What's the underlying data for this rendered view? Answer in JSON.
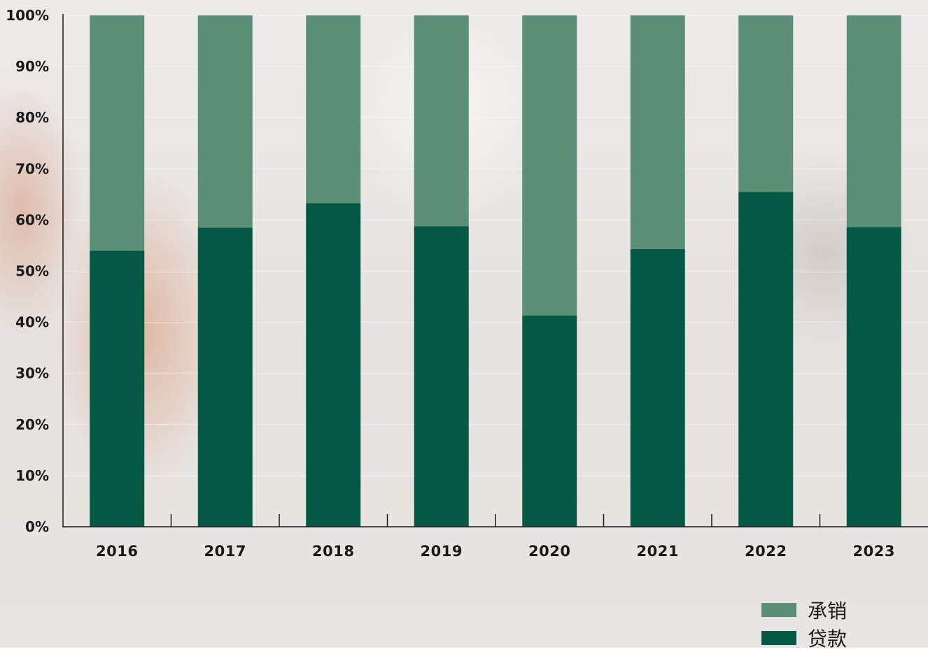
{
  "chart_data": {
    "type": "bar",
    "stacked": true,
    "categories": [
      "2016",
      "2017",
      "2018",
      "2019",
      "2020",
      "2021",
      "2022",
      "2023"
    ],
    "series": [
      {
        "name": "贷款",
        "color": "#045945",
        "values": [
          54,
          58.5,
          63.3,
          58.8,
          41.3,
          54.3,
          65.5,
          58.6
        ]
      },
      {
        "name": "承销",
        "color": "#5c8f77",
        "values": [
          46,
          41.5,
          36.7,
          41.2,
          58.7,
          45.7,
          34.5,
          41.4
        ]
      }
    ],
    "y_ticks": [
      "0%",
      "10%",
      "20%",
      "30%",
      "40%",
      "50%",
      "60%",
      "70%",
      "80%",
      "90%",
      "100%"
    ],
    "ylim": [
      0,
      100
    ],
    "title": "",
    "xlabel": "",
    "ylabel": "",
    "grid": true,
    "legend_position": "bottom-right"
  },
  "legend": [
    {
      "label": "承销",
      "color": "#5c8f77"
    },
    {
      "label": "贷款",
      "color": "#045945"
    }
  ]
}
